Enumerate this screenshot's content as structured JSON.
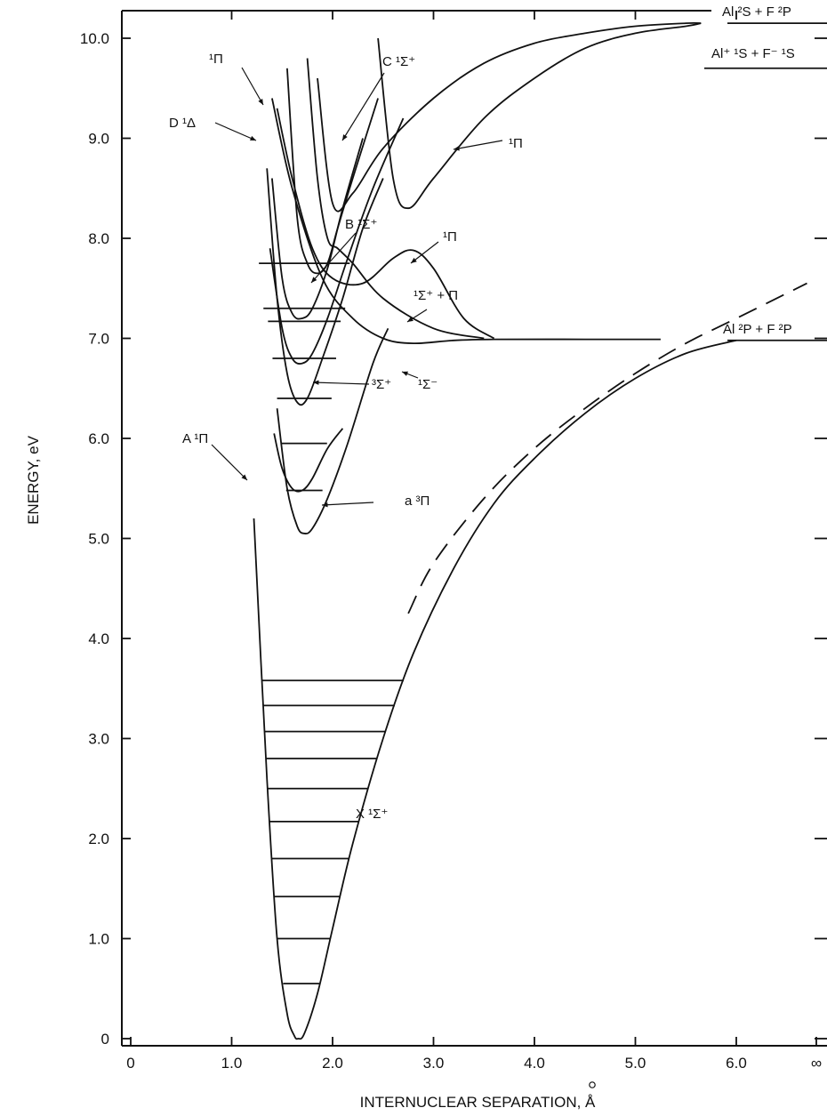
{
  "chart_data": {
    "type": "line",
    "title": "",
    "xlabel": "INTERNUCLEAR SEPARATION, Å",
    "ylabel": "ENERGY, eV",
    "xlim": [
      0,
      6.8
    ],
    "ylim": [
      -0.1,
      10.3
    ],
    "x_tick_labels": [
      "0",
      "1.0",
      "2.0",
      "3.0",
      "4.0",
      "5.0",
      "6.0",
      "∞"
    ],
    "y_tick_labels": [
      "0",
      "1.0",
      "2.0",
      "3.0",
      "4.0",
      "5.0",
      "6.0",
      "7.0",
      "8.0",
      "9.0",
      "10.0"
    ],
    "grid": false,
    "asymptotes": [
      {
        "label": "Al ²S + F ²P",
        "energy": 10.15
      },
      {
        "label": "Al⁺ ¹S + F⁻ ¹S",
        "energy": 9.7
      },
      {
        "label": "Al ²P + F ²P",
        "energy": 6.98
      }
    ],
    "series": [
      {
        "name": "X ¹Σ⁺",
        "style": "solid",
        "x": [
          1.22,
          1.35,
          1.45,
          1.55,
          1.62,
          1.66,
          1.72,
          1.85,
          2.0,
          2.2,
          2.5,
          2.8,
          3.2,
          3.6,
          4.0,
          4.5,
          5.0,
          5.5,
          6.0
        ],
        "y": [
          5.2,
          2.6,
          1.0,
          0.25,
          0.03,
          0.0,
          0.05,
          0.45,
          1.1,
          1.95,
          3.0,
          3.85,
          4.7,
          5.35,
          5.8,
          6.25,
          6.6,
          6.85,
          6.98
        ]
      },
      {
        "name": "ionic Al⁺ F⁻ (dashed)",
        "style": "dashed",
        "x": [
          2.75,
          3.0,
          3.5,
          4.0,
          4.5,
          5.0,
          5.5,
          6.0,
          6.7
        ],
        "y": [
          4.25,
          4.75,
          5.4,
          5.9,
          6.3,
          6.65,
          6.95,
          7.2,
          7.55
        ]
      },
      {
        "name": "a ³Π",
        "style": "solid",
        "x": [
          1.45,
          1.55,
          1.65,
          1.72,
          1.8,
          1.95,
          2.15,
          2.4,
          2.55
        ],
        "y": [
          6.3,
          5.5,
          5.12,
          5.05,
          5.1,
          5.4,
          5.95,
          6.75,
          7.1
        ]
      },
      {
        "name": "A ¹Π",
        "style": "solid",
        "x": [
          1.42,
          1.5,
          1.6,
          1.7,
          1.8,
          1.95,
          2.1
        ],
        "y": [
          6.05,
          5.7,
          5.5,
          5.48,
          5.6,
          5.9,
          6.1
        ]
      },
      {
        "name": "³Σ⁺",
        "style": "solid",
        "x": [
          1.35,
          1.45,
          1.55,
          1.65,
          1.75,
          1.9,
          2.1,
          2.3,
          2.5
        ],
        "y": [
          8.7,
          7.4,
          6.65,
          6.36,
          6.4,
          6.8,
          7.4,
          8.1,
          8.6
        ]
      },
      {
        "name": "¹Σ⁺ + Π",
        "style": "solid",
        "x": [
          1.38,
          1.5,
          1.6,
          1.7,
          1.8,
          1.95,
          2.15,
          2.4,
          2.7
        ],
        "y": [
          7.9,
          7.1,
          6.8,
          6.75,
          6.85,
          7.2,
          7.8,
          8.5,
          9.2
        ]
      },
      {
        "name": "B ¹Σ⁺",
        "style": "solid",
        "x": [
          1.4,
          1.5,
          1.6,
          1.7,
          1.8,
          1.95,
          2.1,
          2.3
        ],
        "y": [
          8.6,
          7.6,
          7.25,
          7.2,
          7.3,
          7.7,
          8.3,
          9.0
        ]
      },
      {
        "name": "D ¹Δ",
        "style": "solid",
        "x": [
          1.55,
          1.65,
          1.75,
          1.85,
          1.95,
          2.05,
          2.2,
          2.45
        ],
        "y": [
          9.7,
          8.2,
          7.75,
          7.65,
          7.75,
          8.1,
          8.6,
          9.4
        ]
      },
      {
        "name": "¹Σ⁻",
        "style": "solid",
        "x": [
          1.4,
          1.6,
          1.9,
          2.2,
          2.5,
          2.8,
          3.2,
          3.6,
          4.5,
          5.25
        ],
        "y": [
          9.4,
          8.5,
          7.6,
          7.2,
          7.0,
          6.95,
          6.98,
          6.99,
          6.99,
          6.99
        ]
      },
      {
        "name": "C ¹Σ⁺",
        "style": "solid",
        "x": [
          1.75,
          1.85,
          1.95,
          2.05,
          2.2,
          2.5,
          3.0,
          3.5
        ],
        "y": [
          9.8,
          8.6,
          8.0,
          7.9,
          7.75,
          7.4,
          7.1,
          7.0
        ]
      },
      {
        "name": "¹Π (upper left)",
        "style": "solid",
        "x": [
          1.45,
          1.6,
          1.8,
          2.0,
          2.3,
          2.6,
          2.8,
          3.0,
          3.3,
          3.6
        ],
        "y": [
          9.3,
          8.6,
          7.9,
          7.6,
          7.55,
          7.8,
          7.88,
          7.7,
          7.2,
          7.0
        ]
      },
      {
        "name": "¹Π (upper right)",
        "style": "solid",
        "x": [
          1.85,
          2.0,
          2.2,
          2.5,
          3.0,
          3.5,
          4.0,
          4.5,
          5.0,
          5.5,
          5.65
        ],
        "y": [
          9.6,
          8.35,
          8.45,
          8.9,
          9.4,
          9.75,
          9.95,
          10.05,
          10.12,
          10.15,
          10.15
        ]
      },
      {
        "name": "¹Π (right)",
        "style": "solid",
        "x": [
          2.45,
          2.6,
          2.75,
          3.0,
          3.5,
          4.0,
          4.5,
          5.0,
          5.5,
          5.65
        ],
        "y": [
          10.0,
          8.6,
          8.3,
          8.6,
          9.2,
          9.6,
          9.9,
          10.05,
          10.12,
          10.15
        ]
      }
    ],
    "vibrational_levels": {
      "X": {
        "energies": [
          0.0,
          0.55,
          1.0,
          1.42,
          1.8,
          2.17,
          2.5,
          2.8,
          3.07,
          3.33,
          3.58
        ]
      },
      "upper": {
        "energies": [
          5.48,
          5.95,
          6.4,
          6.8,
          7.17,
          7.3,
          7.75
        ]
      }
    },
    "annotations": [
      {
        "text": "X ¹Σ⁺"
      },
      {
        "text": "a ³Π"
      },
      {
        "text": "A ¹Π"
      },
      {
        "text": "³Σ⁺"
      },
      {
        "text": "¹Σ⁻"
      },
      {
        "text": "¹Σ⁺ + Π"
      },
      {
        "text": "B ¹Σ⁺"
      },
      {
        "text": "¹Π"
      },
      {
        "text": "¹Π"
      },
      {
        "text": "C ¹Σ⁺"
      },
      {
        "text": "D ¹Δ"
      },
      {
        "text": "¹Π"
      }
    ]
  }
}
